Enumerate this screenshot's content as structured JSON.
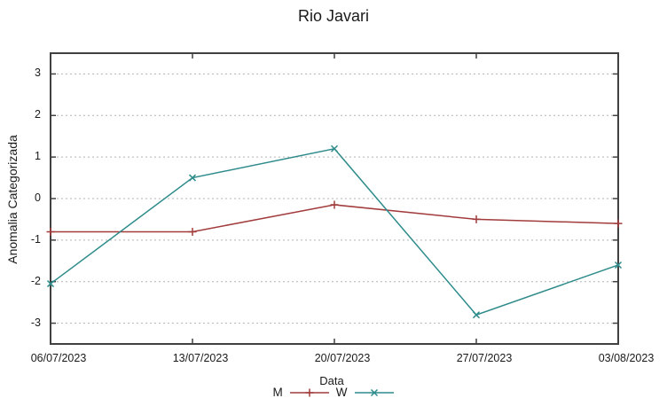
{
  "title": "Rio Javari",
  "chart_data": {
    "type": "line",
    "title": "Rio Javari",
    "xlabel": "Data",
    "ylabel": "Anomalia Categorizada",
    "x_tick_labels": [
      "06/07/2023",
      "13/07/2023",
      "20/07/2023",
      "27/07/2023",
      "03/08/2023"
    ],
    "y_ticks": [
      -3,
      -2,
      -1,
      0,
      1,
      2,
      3
    ],
    "ylim": [
      -3.5,
      3.5
    ],
    "grid": "horizontal-dashed",
    "legend_position": "bottom-center",
    "series": [
      {
        "name": "M",
        "marker": "plus",
        "color": "#A23B3B",
        "values": [
          -0.8,
          -0.8,
          -0.15,
          -0.5,
          -0.6
        ]
      },
      {
        "name": "W",
        "marker": "cross",
        "color": "#2E8B8B",
        "values": [
          -2.05,
          0.5,
          1.2,
          -2.8,
          -1.6
        ]
      }
    ],
    "colors": {
      "axis": "#404040",
      "grid": "#b3b3b3",
      "text": "#1a1a1a"
    }
  }
}
